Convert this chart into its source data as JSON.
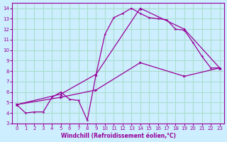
{
  "background_color": "#cceeff",
  "grid_color": "#aaddcc",
  "line_color": "#990099",
  "xlabel": "Windchill (Refroidissement éolien,°C)",
  "ylim": [
    3,
    14.5
  ],
  "xlim": [
    -0.5,
    23.5
  ],
  "yticks": [
    3,
    4,
    5,
    6,
    7,
    8,
    9,
    10,
    11,
    12,
    13,
    14
  ],
  "xticks": [
    0,
    1,
    2,
    3,
    4,
    5,
    6,
    7,
    8,
    9,
    10,
    11,
    12,
    13,
    14,
    15,
    16,
    17,
    18,
    19,
    20,
    21,
    22,
    23
  ],
  "line1_x": [
    0,
    1,
    2,
    3,
    4,
    5,
    6,
    7,
    8,
    9,
    10,
    11,
    12,
    13,
    14,
    15,
    16,
    17,
    18,
    19,
    20,
    21,
    22,
    23
  ],
  "line1_y": [
    4.8,
    4.0,
    4.1,
    4.1,
    5.5,
    6.0,
    5.3,
    5.2,
    3.3,
    7.7,
    11.5,
    13.1,
    13.5,
    14.0,
    13.5,
    13.1,
    13.0,
    12.9,
    12.0,
    11.9,
    10.7,
    9.4,
    8.3,
    8.3
  ],
  "line2_x": [
    0,
    5,
    9,
    14,
    19,
    23
  ],
  "line2_y": [
    4.8,
    5.8,
    7.7,
    14.0,
    12.0,
    8.3
  ],
  "line3_x": [
    0,
    5,
    9,
    14,
    19,
    23
  ],
  "line3_y": [
    4.8,
    5.5,
    6.2,
    8.8,
    7.5,
    8.3
  ]
}
